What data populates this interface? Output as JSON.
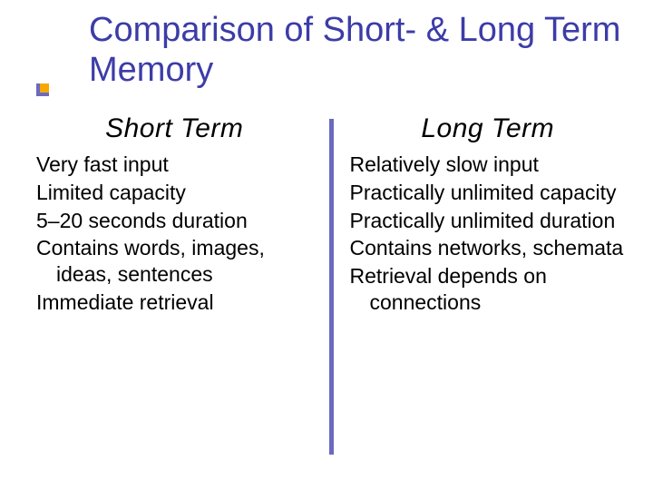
{
  "title": "Comparison of Short- & Long Term Memory",
  "colors": {
    "title_text": "#3c3ca8",
    "divider": "#6a6ac0",
    "bullet_fill": "#f6a800",
    "bullet_border": "#6a6ac0",
    "body_text": "#000000",
    "background": "#ffffff"
  },
  "typography": {
    "title_fontsize": 38,
    "heading_fontsize": 30,
    "item_fontsize": 23,
    "font_family": "Verdana"
  },
  "left": {
    "heading": "Short Term",
    "items": [
      "Very fast input",
      "Limited capacity",
      "5–20 seconds duration",
      "Contains words, images, ideas, sentences",
      "Immediate retrieval"
    ]
  },
  "right": {
    "heading": "Long Term",
    "items": [
      "Relatively slow input",
      "Practically unlimited capacity",
      "Practically unlimited duration",
      "Contains networks, schemata",
      "Retrieval depends on connections"
    ]
  }
}
